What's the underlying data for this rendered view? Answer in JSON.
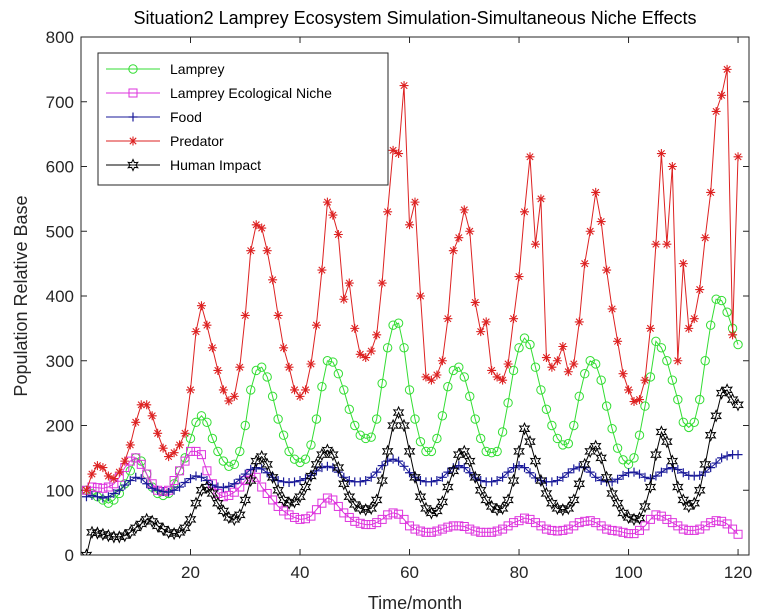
{
  "chart_data": {
    "type": "line",
    "title": "Situation2 Lamprey Ecosystem Simulation-Simultaneous Niche Effects",
    "xlabel": "Time/month",
    "ylabel": "Population Relative Base",
    "xlim": [
      0,
      122
    ],
    "ylim": [
      0,
      800
    ],
    "xticks": [
      20,
      40,
      60,
      80,
      100,
      120
    ],
    "yticks": [
      0,
      100,
      200,
      300,
      400,
      500,
      600,
      700,
      800
    ],
    "legend_position": "top-left",
    "grid": false,
    "series": [
      {
        "name": "Lamprey",
        "color": "#33dd33",
        "marker": "circle",
        "x": [
          1,
          2,
          3,
          4,
          5,
          6,
          7,
          8,
          9,
          10,
          11,
          12,
          13,
          14,
          15,
          16,
          17,
          18,
          19,
          20,
          21,
          22,
          23,
          24,
          25,
          26,
          27,
          28,
          29,
          30,
          31,
          32,
          33,
          34,
          35,
          36,
          37,
          38,
          39,
          40,
          41,
          42,
          43,
          44,
          45,
          46,
          47,
          48,
          49,
          50,
          51,
          52,
          53,
          54,
          55,
          56,
          57,
          58,
          59,
          60,
          61,
          62,
          63,
          64,
          65,
          66,
          67,
          68,
          69,
          70,
          71,
          72,
          73,
          74,
          75,
          76,
          77,
          78,
          79,
          80,
          81,
          82,
          83,
          84,
          85,
          86,
          87,
          88,
          89,
          90,
          91,
          92,
          93,
          94,
          95,
          96,
          97,
          98,
          99,
          100,
          101,
          102,
          103,
          104,
          105,
          106,
          107,
          108,
          109,
          110,
          111,
          112,
          113,
          114,
          115,
          116,
          117,
          118,
          119,
          120
        ],
        "y": [
          100,
          95,
          90,
          85,
          80,
          85,
          95,
          110,
          130,
          150,
          145,
          125,
          105,
          95,
          92,
          95,
          110,
          130,
          150,
          180,
          205,
          215,
          205,
          180,
          160,
          145,
          137,
          140,
          160,
          200,
          255,
          285,
          290,
          275,
          245,
          210,
          185,
          160,
          148,
          143,
          148,
          170,
          210,
          260,
          300,
          298,
          280,
          255,
          225,
          200,
          185,
          180,
          182,
          210,
          265,
          320,
          355,
          358,
          320,
          255,
          210,
          175,
          160,
          160,
          180,
          215,
          260,
          285,
          290,
          275,
          245,
          210,
          180,
          160,
          158,
          160,
          190,
          235,
          285,
          320,
          335,
          325,
          290,
          255,
          225,
          200,
          180,
          170,
          172,
          200,
          245,
          280,
          300,
          295,
          270,
          230,
          195,
          165,
          147,
          140,
          150,
          185,
          230,
          275,
          330,
          320,
          300,
          270,
          240,
          205,
          197,
          205,
          240,
          300,
          355,
          395,
          393,
          375,
          350,
          325
        ]
      },
      {
        "name": "Lamprey Ecological Niche",
        "color": "#dd33dd",
        "marker": "square",
        "x": [
          1,
          2,
          3,
          4,
          5,
          6,
          7,
          8,
          9,
          10,
          11,
          12,
          13,
          14,
          15,
          16,
          17,
          18,
          19,
          20,
          21,
          22,
          23,
          24,
          25,
          26,
          27,
          28,
          29,
          30,
          31,
          32,
          33,
          34,
          35,
          36,
          37,
          38,
          39,
          40,
          41,
          42,
          43,
          44,
          45,
          46,
          47,
          48,
          49,
          50,
          51,
          52,
          53,
          54,
          55,
          56,
          57,
          58,
          59,
          60,
          61,
          62,
          63,
          64,
          65,
          66,
          67,
          68,
          69,
          70,
          71,
          72,
          73,
          74,
          75,
          76,
          77,
          78,
          79,
          80,
          81,
          82,
          83,
          84,
          85,
          86,
          87,
          88,
          89,
          90,
          91,
          92,
          93,
          94,
          95,
          96,
          97,
          98,
          99,
          100,
          101,
          102,
          103,
          104,
          105,
          106,
          107,
          108,
          109,
          110,
          111,
          112,
          113,
          114,
          115,
          116,
          117,
          118,
          119,
          120
        ],
        "y": [
          100,
          105,
          104,
          103,
          105,
          110,
          120,
          135,
          145,
          150,
          140,
          125,
          110,
          100,
          98,
          100,
          115,
          130,
          145,
          160,
          160,
          155,
          130,
          110,
          95,
          90,
          92,
          97,
          105,
          115,
          125,
          120,
          105,
          95,
          85,
          75,
          68,
          62,
          58,
          55,
          56,
          60,
          70,
          80,
          88,
          85,
          75,
          65,
          58,
          52,
          49,
          47,
          47,
          50,
          55,
          62,
          65,
          63,
          55,
          45,
          40,
          37,
          35,
          35,
          37,
          40,
          43,
          45,
          45,
          44,
          40,
          37,
          35,
          35,
          35,
          37,
          40,
          45,
          50,
          53,
          57,
          55,
          50,
          45,
          40,
          38,
          37,
          38,
          40,
          45,
          50,
          52,
          53,
          50,
          45,
          40,
          38,
          37,
          35,
          33,
          33,
          38,
          45,
          55,
          62,
          60,
          55,
          50,
          45,
          40,
          38,
          38,
          40,
          45,
          50,
          53,
          52,
          48,
          40,
          32
        ]
      },
      {
        "name": "Food",
        "color": "#1a1a99",
        "marker": "plus",
        "x": [
          1,
          2,
          3,
          4,
          5,
          6,
          7,
          8,
          9,
          10,
          11,
          12,
          13,
          14,
          15,
          16,
          17,
          18,
          19,
          20,
          21,
          22,
          23,
          24,
          25,
          26,
          27,
          28,
          29,
          30,
          31,
          32,
          33,
          34,
          35,
          36,
          37,
          38,
          39,
          40,
          41,
          42,
          43,
          44,
          45,
          46,
          47,
          48,
          49,
          50,
          51,
          52,
          53,
          54,
          55,
          56,
          57,
          58,
          59,
          60,
          61,
          62,
          63,
          64,
          65,
          66,
          67,
          68,
          69,
          70,
          71,
          72,
          73,
          74,
          75,
          76,
          77,
          78,
          79,
          80,
          81,
          82,
          83,
          84,
          85,
          86,
          87,
          88,
          89,
          90,
          91,
          92,
          93,
          94,
          95,
          96,
          97,
          98,
          99,
          100,
          101,
          102,
          103,
          104,
          105,
          106,
          107,
          108,
          109,
          110,
          111,
          112,
          113,
          114,
          115,
          116,
          117,
          118,
          119,
          120
        ],
        "y": [
          90,
          92,
          90,
          88,
          90,
          95,
          100,
          108,
          115,
          120,
          118,
          110,
          103,
          100,
          98,
          97,
          100,
          105,
          112,
          118,
          122,
          120,
          115,
          108,
          105,
          104,
          106,
          110,
          117,
          125,
          132,
          135,
          133,
          127,
          120,
          115,
          113,
          112,
          113,
          115,
          118,
          123,
          130,
          135,
          137,
          135,
          128,
          120,
          115,
          113,
          113,
          115,
          120,
          128,
          138,
          145,
          148,
          145,
          137,
          127,
          120,
          115,
          113,
          113,
          115,
          120,
          128,
          135,
          138,
          135,
          127,
          119,
          115,
          113,
          113,
          115,
          120,
          128,
          135,
          138,
          135,
          127,
          119,
          115,
          113,
          113,
          115,
          120,
          127,
          133,
          136,
          135,
          128,
          120,
          115,
          113,
          113,
          117,
          123,
          127,
          128,
          125,
          120,
          118,
          122,
          128,
          133,
          135,
          132,
          127,
          123,
          122,
          123,
          128,
          135,
          142,
          150,
          153,
          155,
          155
        ]
      },
      {
        "name": "Predator",
        "color": "#dd2222",
        "marker": "asterisk",
        "x": [
          1,
          2,
          3,
          4,
          5,
          6,
          7,
          8,
          9,
          10,
          11,
          12,
          13,
          14,
          15,
          16,
          17,
          18,
          19,
          20,
          21,
          22,
          23,
          24,
          25,
          26,
          27,
          28,
          29,
          30,
          31,
          32,
          33,
          34,
          35,
          36,
          37,
          38,
          39,
          40,
          41,
          42,
          43,
          44,
          45,
          46,
          47,
          48,
          49,
          50,
          51,
          52,
          53,
          54,
          55,
          56,
          57,
          58,
          59,
          60,
          61,
          62,
          63,
          64,
          65,
          66,
          67,
          68,
          69,
          70,
          71,
          72,
          73,
          74,
          75,
          76,
          77,
          78,
          79,
          80,
          81,
          82,
          83,
          84,
          85,
          86,
          87,
          88,
          89,
          90,
          91,
          92,
          93,
          94,
          95,
          96,
          97,
          98,
          99,
          100,
          101,
          102,
          103,
          104,
          105,
          106,
          107,
          108,
          109,
          110,
          111,
          112,
          113,
          114,
          115,
          116,
          117,
          118,
          119,
          120
        ],
        "y": [
          100,
          125,
          138,
          135,
          122,
          118,
          128,
          145,
          170,
          205,
          232,
          232,
          215,
          188,
          165,
          152,
          158,
          170,
          188,
          255,
          345,
          385,
          355,
          320,
          285,
          255,
          238,
          245,
          290,
          370,
          470,
          510,
          505,
          470,
          425,
          370,
          320,
          290,
          255,
          245,
          255,
          295,
          355,
          440,
          545,
          525,
          495,
          395,
          420,
          350,
          310,
          305,
          315,
          340,
          420,
          530,
          625,
          620,
          725,
          510,
          545,
          400,
          275,
          270,
          278,
          300,
          365,
          470,
          490,
          533,
          500,
          390,
          345,
          360,
          285,
          275,
          270,
          295,
          365,
          430,
          530,
          615,
          480,
          550,
          305,
          290,
          300,
          322,
          283,
          295,
          360,
          450,
          500,
          560,
          515,
          440,
          380,
          330,
          280,
          255,
          237,
          240,
          270,
          350,
          480,
          620,
          480,
          600,
          300,
          450,
          350,
          365,
          410,
          490,
          560,
          685,
          710,
          750,
          340,
          615
        ]
      },
      {
        "name": "Human Impact",
        "color": "#000000",
        "marker": "hexagram",
        "x": [
          1,
          2,
          3,
          4,
          5,
          6,
          7,
          8,
          9,
          10,
          11,
          12,
          13,
          14,
          15,
          16,
          17,
          18,
          19,
          20,
          21,
          22,
          23,
          24,
          25,
          26,
          27,
          28,
          29,
          30,
          31,
          32,
          33,
          34,
          35,
          36,
          37,
          38,
          39,
          40,
          41,
          42,
          43,
          44,
          45,
          46,
          47,
          48,
          49,
          50,
          51,
          52,
          53,
          54,
          55,
          56,
          57,
          58,
          59,
          60,
          61,
          62,
          63,
          64,
          65,
          66,
          67,
          68,
          69,
          70,
          71,
          72,
          73,
          74,
          75,
          76,
          77,
          78,
          79,
          80,
          81,
          82,
          83,
          84,
          85,
          86,
          87,
          88,
          89,
          90,
          91,
          92,
          93,
          94,
          95,
          96,
          97,
          98,
          99,
          100,
          101,
          102,
          103,
          104,
          105,
          106,
          107,
          108,
          109,
          110,
          111,
          112,
          113,
          114,
          115,
          116,
          117,
          118,
          119,
          120
        ],
        "y": [
          0,
          35,
          34,
          32,
          30,
          28,
          28,
          30,
          35,
          42,
          48,
          55,
          52,
          45,
          40,
          35,
          33,
          35,
          42,
          55,
          80,
          100,
          105,
          95,
          80,
          68,
          58,
          55,
          62,
          85,
          115,
          145,
          152,
          140,
          120,
          100,
          85,
          80,
          82,
          90,
          105,
          122,
          140,
          155,
          162,
          155,
          135,
          110,
          90,
          78,
          72,
          70,
          72,
          85,
          115,
          160,
          200,
          220,
          200,
          160,
          120,
          90,
          72,
          65,
          68,
          82,
          105,
          130,
          155,
          160,
          145,
          120,
          100,
          85,
          75,
          70,
          72,
          85,
          115,
          160,
          195,
          175,
          145,
          115,
          95,
          80,
          72,
          70,
          72,
          85,
          110,
          140,
          160,
          168,
          150,
          120,
          95,
          80,
          65,
          58,
          55,
          57,
          75,
          105,
          155,
          190,
          175,
          145,
          105,
          85,
          75,
          80,
          100,
          140,
          185,
          215,
          250,
          255,
          240,
          232
        ]
      }
    ]
  }
}
